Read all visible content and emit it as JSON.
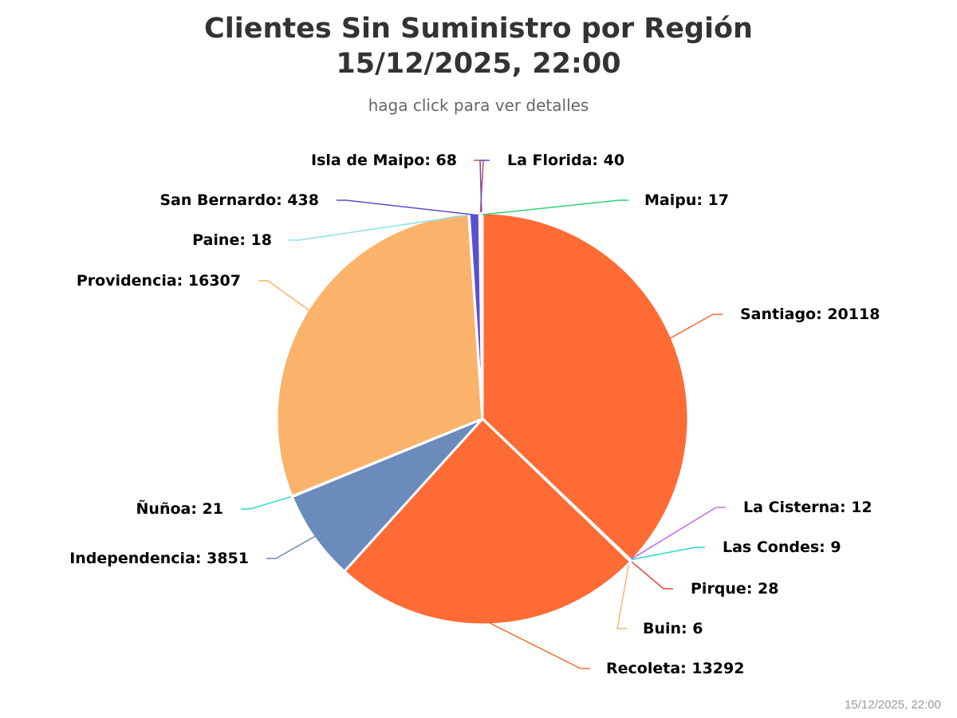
{
  "chart_data": {
    "type": "pie",
    "title_lines": [
      "Clientes Sin Suministro por Región",
      "15/12/2025, 22:00"
    ],
    "subtitle": "haga click para ver detalles",
    "timestamp": "15/12/2025, 22:00",
    "slices": [
      {
        "name": "Santiago",
        "value": 20118,
        "color": "#ff6b35"
      },
      {
        "name": "La Cisterna",
        "value": 12,
        "color": "#c56bf2"
      },
      {
        "name": "Las Condes",
        "value": 9,
        "color": "#2ed8c8"
      },
      {
        "name": "Pirque",
        "value": 28,
        "color": "#e8453c"
      },
      {
        "name": "Buin",
        "value": 6,
        "color": "#fbb36b"
      },
      {
        "name": "Recoleta",
        "value": 13292,
        "color": "#ff6b35"
      },
      {
        "name": "Independencia",
        "value": 3851,
        "color": "#6b8bbd"
      },
      {
        "name": "Ñuñoa",
        "value": 21,
        "color": "#2ed8c8"
      },
      {
        "name": "Providencia",
        "value": 16307,
        "color": "#fbb36b"
      },
      {
        "name": "Paine",
        "value": 18,
        "color": "#8ee0e8"
      },
      {
        "name": "San Bernardo",
        "value": 438,
        "color": "#5a4fcf"
      },
      {
        "name": "Isla de Maipo",
        "value": 68,
        "color": "#e8453c"
      },
      {
        "name": "La Florida",
        "value": 40,
        "color": "#5a4fcf"
      },
      {
        "name": "Maipu",
        "value": 17,
        "color": "#2ed07a"
      }
    ]
  }
}
